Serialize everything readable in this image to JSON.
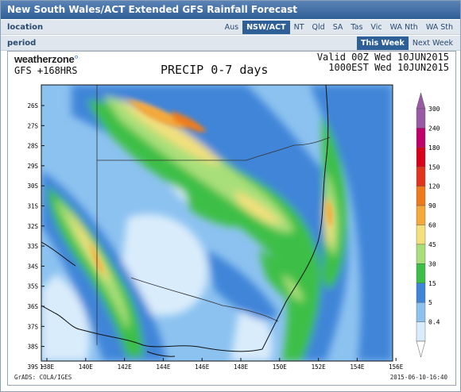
{
  "title": "New South Wales/ACT Extended GFS Rainfall Forecast",
  "location_label": "location",
  "period_label": "period",
  "location_tabs": [
    {
      "label": "Aus",
      "active": false
    },
    {
      "label": "NSW/ACT",
      "active": true
    },
    {
      "label": "NT",
      "active": false
    },
    {
      "label": "Qld",
      "active": false
    },
    {
      "label": "SA",
      "active": false
    },
    {
      "label": "Tas",
      "active": false
    },
    {
      "label": "Vic",
      "active": false
    },
    {
      "label": "WA Nth",
      "active": false
    },
    {
      "label": "WA Sth",
      "active": false
    }
  ],
  "period_tabs": [
    {
      "label": "This Week",
      "active": true
    },
    {
      "label": "Next Week",
      "active": false
    }
  ],
  "map": {
    "logo_main": "weatherzone",
    "logo_mark": "°",
    "model": "GFS +168HRS",
    "product_title": "PRECIP 0-7 days",
    "valid_line1": "Valid 00Z Wed 10JUN2015",
    "valid_line2": "1000EST Wed 10JUN2015",
    "credit": "GrADS: COLA/IGES",
    "timestamp": "2015-06-10-16:40",
    "lat_labels": [
      "26S",
      "27S",
      "28S",
      "29S",
      "30S",
      "31S",
      "32S",
      "33S",
      "34S",
      "35S",
      "36S",
      "37S",
      "38S",
      "39S"
    ],
    "lon_labels": [
      "138E",
      "140E",
      "142E",
      "144E",
      "146E",
      "148E",
      "150E",
      "152E",
      "154E",
      "156E"
    ],
    "legend": [
      {
        "value": "300",
        "color": "#9a59a5"
      },
      {
        "value": "240",
        "color": "#c0006a"
      },
      {
        "value": "180",
        "color": "#d8001a"
      },
      {
        "value": "150",
        "color": "#e2341c"
      },
      {
        "value": "120",
        "color": "#ee7b1b"
      },
      {
        "value": "90",
        "color": "#f4a93a"
      },
      {
        "value": "60",
        "color": "#f3e07b"
      },
      {
        "value": "45",
        "color": "#a9df7a"
      },
      {
        "value": "30",
        "color": "#3cbf47"
      },
      {
        "value": "15",
        "color": "#3f85d8"
      },
      {
        "value": "5",
        "color": "#8cc2f0"
      },
      {
        "value": "0.4",
        "color": "#d9ecfb"
      }
    ]
  }
}
